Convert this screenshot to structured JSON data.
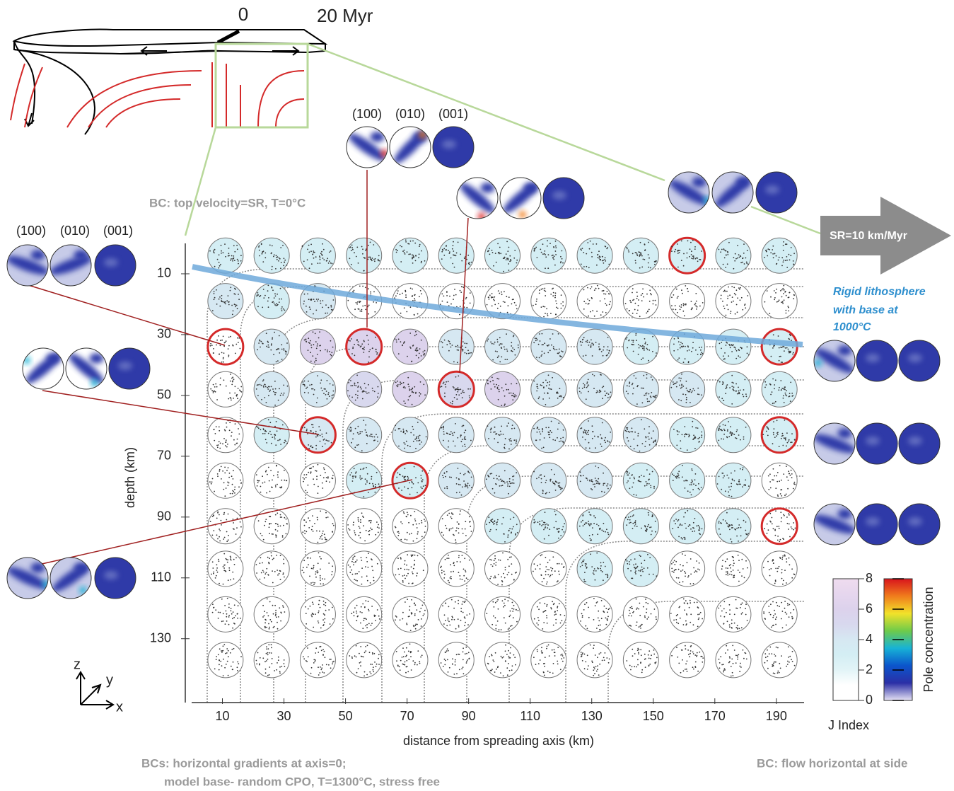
{
  "chart_data": {
    "type": "pole-figure-grid",
    "x_label": "distance from spreading axis (km)",
    "y_label": "depth (km)",
    "xlim": [
      0,
      199
    ],
    "ylim": [
      151,
      0
    ],
    "xticks": [
      10,
      30,
      50,
      70,
      90,
      110,
      130,
      150,
      170,
      190
    ],
    "yticks": [
      10,
      30,
      50,
      70,
      90,
      110,
      130
    ],
    "columns": [
      11,
      26,
      41,
      56,
      71,
      86,
      101,
      116,
      131,
      146,
      161,
      176,
      191
    ],
    "rows": [
      4,
      19,
      34,
      48,
      63,
      78,
      93,
      107,
      122,
      137
    ],
    "j_index": [
      [
        3,
        3,
        3,
        3,
        3,
        3,
        3,
        3,
        3,
        3,
        3,
        3,
        3
      ],
      [
        4,
        3,
        4,
        1,
        1,
        1,
        1,
        1,
        1,
        1,
        1,
        1,
        1
      ],
      [
        1,
        4,
        6,
        6,
        6,
        4,
        4,
        4,
        4,
        3,
        3,
        3,
        3
      ],
      [
        1,
        4,
        4,
        5,
        6,
        5,
        6,
        4,
        4,
        4,
        4,
        3,
        3
      ],
      [
        1,
        3,
        4,
        4,
        4,
        4,
        4,
        4,
        4,
        4,
        3,
        3,
        3
      ],
      [
        1,
        1,
        1,
        3,
        3,
        4,
        4,
        4,
        4,
        3,
        3,
        3,
        1
      ],
      [
        1,
        1,
        1,
        1,
        1,
        1,
        3,
        3,
        3,
        3,
        3,
        3,
        1
      ],
      [
        1,
        1,
        1,
        1,
        1,
        1,
        1,
        1,
        3,
        3,
        1,
        1,
        1
      ],
      [
        1,
        1,
        1,
        1,
        1,
        1,
        1,
        1,
        1,
        1,
        1,
        1,
        1
      ],
      [
        1,
        1,
        1,
        1,
        1,
        1,
        1,
        1,
        1,
        1,
        1,
        1,
        1
      ]
    ],
    "highlighted": [
      [
        0,
        10
      ],
      [
        2,
        0
      ],
      [
        2,
        3
      ],
      [
        2,
        12
      ],
      [
        3,
        5
      ],
      [
        4,
        2
      ],
      [
        4,
        12
      ],
      [
        5,
        4
      ],
      [
        6,
        12
      ]
    ],
    "highlight_color": "#d42a2a",
    "colorbars": {
      "j_index": {
        "label": "J Index",
        "lim": [
          0,
          8
        ],
        "ticks": [
          0,
          2,
          4,
          6,
          8
        ],
        "colors": [
          "#ffffff",
          "#ffffff",
          "#e2f4f7",
          "#d4eef4",
          "#d6e8f2",
          "#d8d8ee",
          "#dcd2ec",
          "#e6d6ee",
          "#efdcef"
        ]
      },
      "pole_concentration": {
        "label": "Pole concentration",
        "lim": [
          0,
          8
        ],
        "ticks": [
          0,
          2,
          4,
          6,
          8
        ],
        "colors": [
          "#e6e2f4",
          "#2b2fa6",
          "#0b55cc",
          "#17b2d6",
          "#6ecb4a",
          "#f2e22a",
          "#f07c1c",
          "#d8141c"
        ]
      }
    },
    "pole_figure_labels": [
      "(100)",
      "(010)",
      "(001)"
    ],
    "annotations": {
      "time_start": "0",
      "time_end": "20 Myr",
      "bc_top": "BC: top velocity=SR, T=0°C",
      "bc_bottom": [
        "BCs: horizontal gradients at axis=0;",
        "model base- random CPO, T=1300°C, stress free"
      ],
      "bc_side": "BC: flow horizontal at side",
      "spreading_rate": "SR=10 km/Myr",
      "lithosphere": [
        "Rigid lithosphere",
        " with base  at",
        "1000°C"
      ]
    },
    "axes_icon": [
      "z",
      "y",
      "x"
    ]
  }
}
